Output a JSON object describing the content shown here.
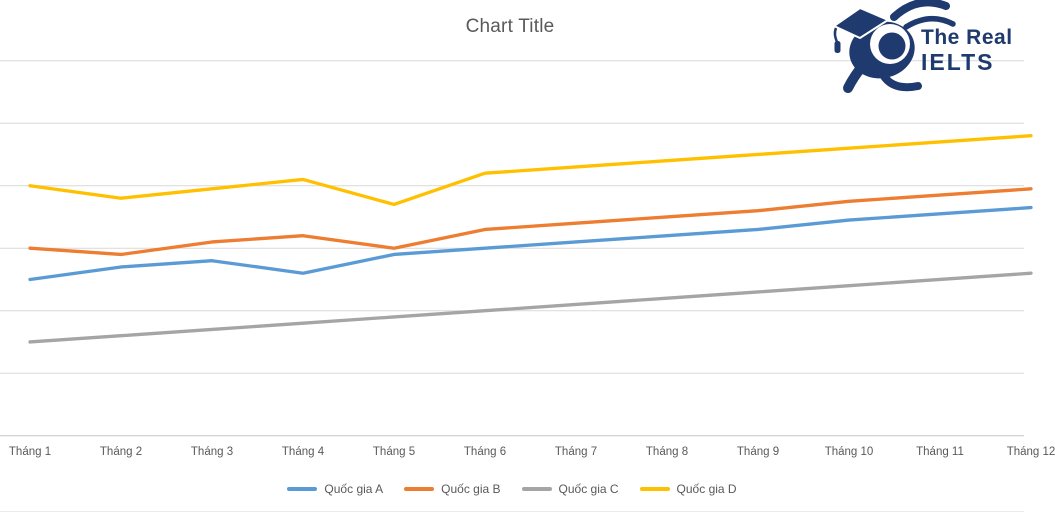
{
  "title": "Chart Title",
  "logo": {
    "line1": "The Real",
    "line2": "IELTS",
    "color": "#1e3a6e",
    "mascot_icon": "graduate-mascot-with-lens"
  },
  "colors": {
    "gridline": "#d9d9d9",
    "axis_line": "#c6c6c6",
    "text": "#595959",
    "background": "#ffffff"
  },
  "chart_data": {
    "type": "line",
    "title": "Chart Title",
    "xlabel": "",
    "ylabel": "",
    "categories": [
      "Tháng 1",
      "Tháng 2",
      "Tháng 3",
      "Tháng 4",
      "Tháng 5",
      "Tháng 6",
      "Tháng 7",
      "Tháng 8",
      "Tháng 9",
      "Tháng 10",
      "Tháng 11",
      "Tháng 12"
    ],
    "series": [
      {
        "name": "Quốc gia A",
        "color": "#5B9BD5",
        "values": [
          25,
          27,
          28,
          26,
          29,
          30,
          31,
          32,
          33,
          34.5,
          35.5,
          36.5
        ]
      },
      {
        "name": "Quốc gia B",
        "color": "#ED7D31",
        "values": [
          30,
          29,
          31,
          32,
          30,
          33,
          34,
          35,
          36,
          37.5,
          38.5,
          39.5
        ]
      },
      {
        "name": "Quốc gia C",
        "color": "#A5A5A5",
        "values": [
          15,
          16,
          17,
          18,
          19,
          20,
          21,
          22,
          23,
          24,
          25,
          26
        ]
      },
      {
        "name": "Quốc gia D",
        "color": "#FFC000",
        "values": [
          40,
          38,
          39.5,
          41,
          37,
          42,
          43,
          44,
          45,
          46,
          47,
          48
        ]
      }
    ],
    "ylim": [
      0,
      60
    ],
    "y_gridline_step": 10,
    "y_axis_labels_visible": false,
    "grid": true,
    "legend_position": "bottom"
  }
}
